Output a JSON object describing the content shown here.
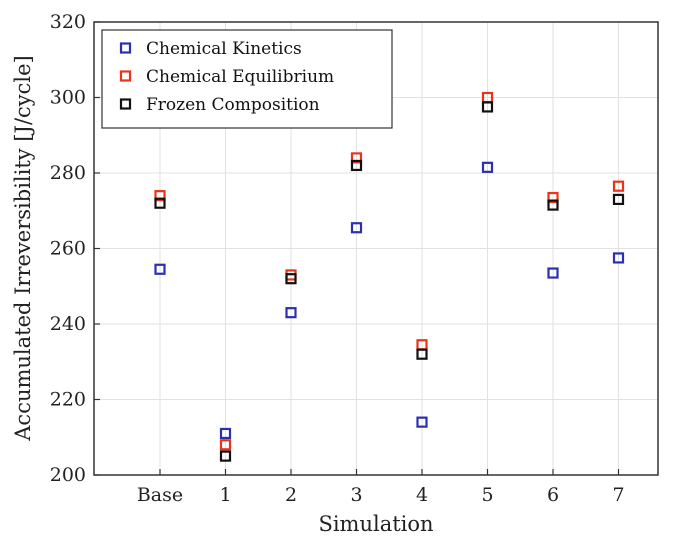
{
  "chart_data": {
    "type": "scatter",
    "categories": [
      "Base",
      "1",
      "2",
      "3",
      "4",
      "5",
      "6",
      "7"
    ],
    "xlabel": "Simulation",
    "ylabel": "Accumulated Irreversibility [J/cycle]",
    "ylim": [
      200,
      320
    ],
    "yticks": [
      "200",
      "220",
      "240",
      "260",
      "280",
      "300",
      "320"
    ],
    "grid": true,
    "legend_position": "top-left",
    "series": [
      {
        "name": "Chemical Kinetics",
        "color": "#2b2fb0",
        "values": [
          254.5,
          211,
          243,
          265.5,
          214,
          281.5,
          253.5,
          257.5
        ]
      },
      {
        "name": "Chemical Equilibrium",
        "color": "#e8341c",
        "values": [
          274,
          208,
          253,
          284,
          234.5,
          300,
          273.5,
          276.5
        ]
      },
      {
        "name": "Frozen Composition",
        "color": "#111111",
        "values": [
          272,
          205,
          252,
          282,
          232,
          297.5,
          271.5,
          273
        ]
      }
    ]
  }
}
